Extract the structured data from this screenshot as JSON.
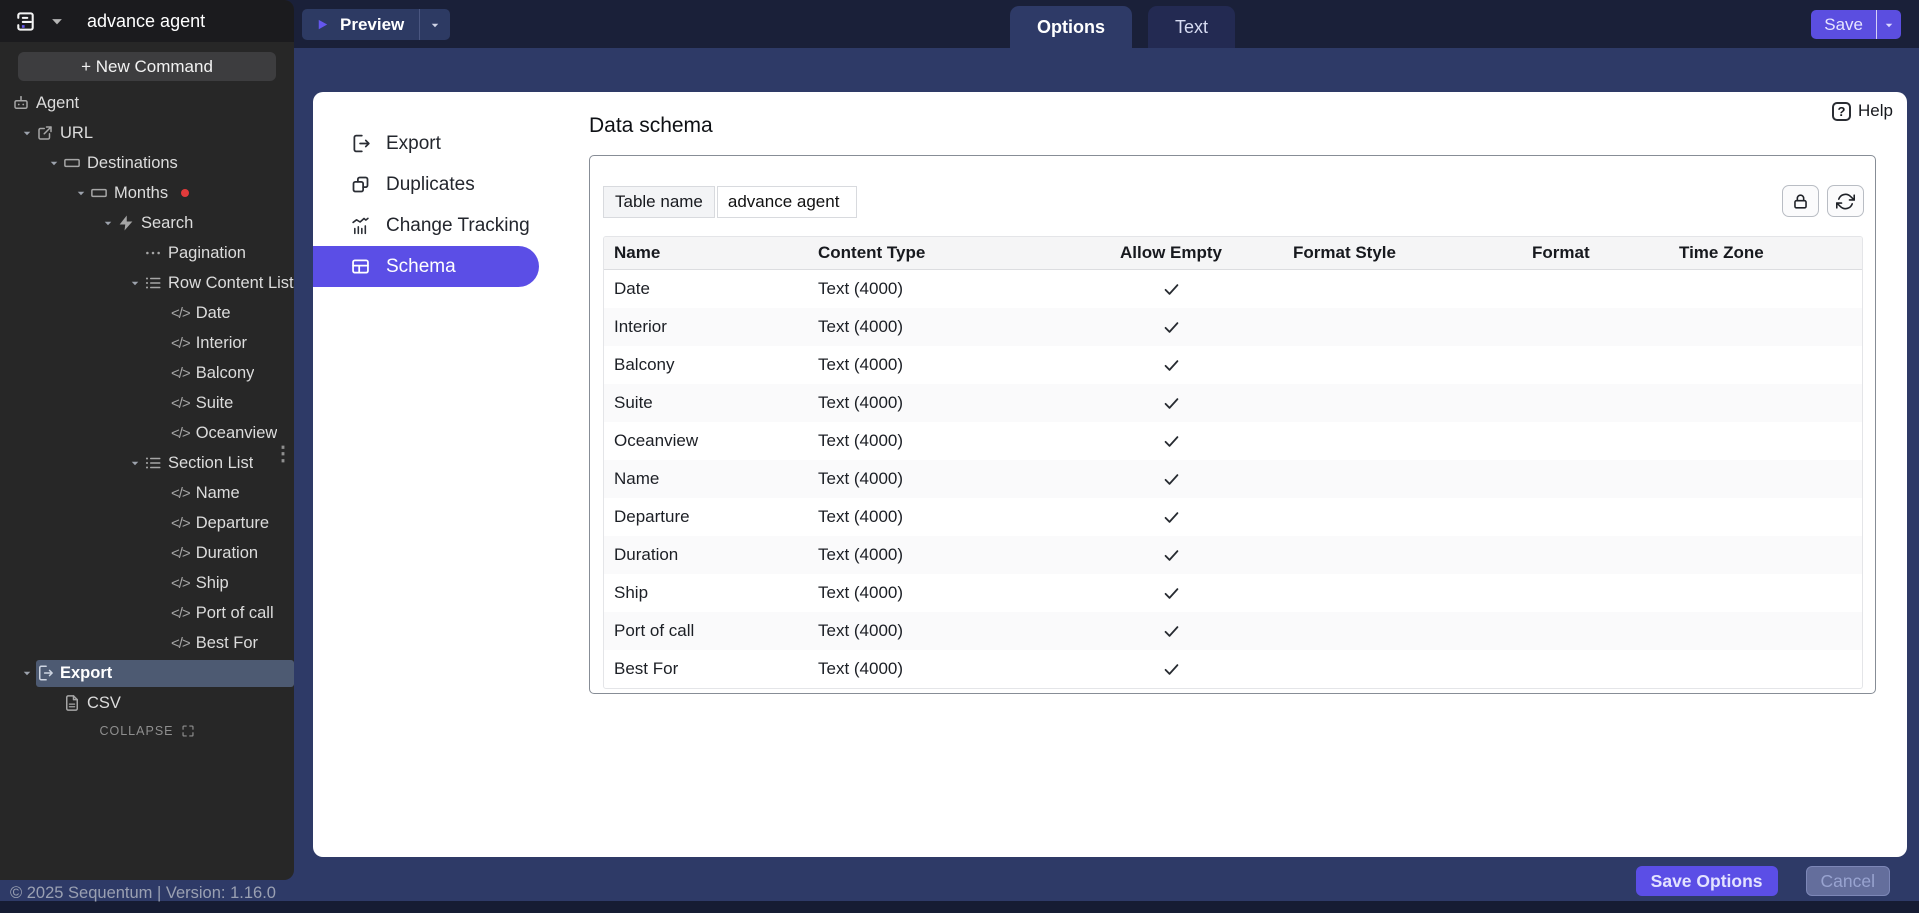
{
  "app": {
    "title": "advance agent",
    "footer_note": "© 2025 Sequentum | Version: 1.16.0"
  },
  "topbar": {
    "preview_label": "Preview",
    "save_label": "Save",
    "tabs": [
      {
        "label": "Options",
        "active": true
      },
      {
        "label": "Text",
        "active": false
      }
    ]
  },
  "sidebar": {
    "new_command_label": "+ New Command",
    "collapse_label": "COLLAPSE",
    "tree": [
      {
        "label": "Agent",
        "icon": "robot",
        "indent": 0
      },
      {
        "label": "URL",
        "icon": "external-link",
        "indent": 1,
        "chevron": true
      },
      {
        "label": "Destinations",
        "icon": "input-box",
        "indent": 2,
        "chevron": true
      },
      {
        "label": "Months",
        "icon": "input-box",
        "indent": 3,
        "chevron": true,
        "red_dot": true
      },
      {
        "label": "Search",
        "icon": "lightning",
        "indent": 4,
        "chevron": true
      },
      {
        "label": "Pagination",
        "icon": "dots",
        "indent": 5
      },
      {
        "label": "Row Content List",
        "icon": "list",
        "indent": 5,
        "chevron": true
      },
      {
        "label": "Date",
        "icon": "code",
        "indent": 6
      },
      {
        "label": "Interior",
        "icon": "code",
        "indent": 6
      },
      {
        "label": "Balcony",
        "icon": "code",
        "indent": 6
      },
      {
        "label": "Suite",
        "icon": "code",
        "indent": 6
      },
      {
        "label": "Oceanview",
        "icon": "code",
        "indent": 6
      },
      {
        "label": "Section List",
        "icon": "list",
        "indent": 5,
        "chevron": true
      },
      {
        "label": "Name",
        "icon": "code",
        "indent": 6
      },
      {
        "label": "Departure",
        "icon": "code",
        "indent": 6
      },
      {
        "label": "Duration",
        "icon": "code",
        "indent": 6
      },
      {
        "label": "Ship",
        "icon": "code",
        "indent": 6
      },
      {
        "label": "Port of call",
        "icon": "code",
        "indent": 6
      },
      {
        "label": "Best For",
        "icon": "code",
        "indent": 6
      },
      {
        "label": "Export",
        "icon": "export-file",
        "indent": 1,
        "chevron": true,
        "selected": true
      },
      {
        "label": "CSV",
        "icon": "csv-file",
        "indent": 2
      }
    ]
  },
  "menu": {
    "items": [
      {
        "label": "Export",
        "icon": "export-file"
      },
      {
        "label": "Duplicates",
        "icon": "duplicates"
      },
      {
        "label": "Change Tracking",
        "icon": "change-tracking"
      },
      {
        "label": "Schema",
        "icon": "schema",
        "active": true
      }
    ]
  },
  "schema": {
    "title": "Data schema",
    "help_label": "Help",
    "table_name_label": "Table name",
    "table_name_value": "advance agent",
    "table": {
      "columns": [
        "Name",
        "Content Type",
        "Allow Empty",
        "Format Style",
        "Format",
        "Time Zone"
      ],
      "rows": [
        {
          "name": "Date",
          "content_type": "Text (4000)",
          "allow_empty": true,
          "format_style": "",
          "format": "",
          "time_zone": ""
        },
        {
          "name": "Interior",
          "content_type": "Text (4000)",
          "allow_empty": true,
          "format_style": "",
          "format": "",
          "time_zone": ""
        },
        {
          "name": "Balcony",
          "content_type": "Text (4000)",
          "allow_empty": true,
          "format_style": "",
          "format": "",
          "time_zone": ""
        },
        {
          "name": "Suite",
          "content_type": "Text (4000)",
          "allow_empty": true,
          "format_style": "",
          "format": "",
          "time_zone": ""
        },
        {
          "name": "Oceanview",
          "content_type": "Text (4000)",
          "allow_empty": true,
          "format_style": "",
          "format": "",
          "time_zone": ""
        },
        {
          "name": "Name",
          "content_type": "Text (4000)",
          "allow_empty": true,
          "format_style": "",
          "format": "",
          "time_zone": ""
        },
        {
          "name": "Departure",
          "content_type": "Text (4000)",
          "allow_empty": true,
          "format_style": "",
          "format": "",
          "time_zone": ""
        },
        {
          "name": "Duration",
          "content_type": "Text (4000)",
          "allow_empty": true,
          "format_style": "",
          "format": "",
          "time_zone": ""
        },
        {
          "name": "Ship",
          "content_type": "Text (4000)",
          "allow_empty": true,
          "format_style": "",
          "format": "",
          "time_zone": ""
        },
        {
          "name": "Port of call",
          "content_type": "Text (4000)",
          "allow_empty": true,
          "format_style": "",
          "format": "",
          "time_zone": ""
        },
        {
          "name": "Best For",
          "content_type": "Text (4000)",
          "allow_empty": true,
          "format_style": "",
          "format": "",
          "time_zone": ""
        }
      ]
    }
  },
  "footer": {
    "save_options_label": "Save Options",
    "cancel_label": "Cancel"
  },
  "colors": {
    "accent_purple": "#5b4ee6",
    "band_navy": "#2e3a67",
    "topbar_navy": "#1a2039",
    "sidebar_gray": "#272727",
    "selected_tree_row": "#4d5a72",
    "red_dot": "#e23b3b"
  }
}
